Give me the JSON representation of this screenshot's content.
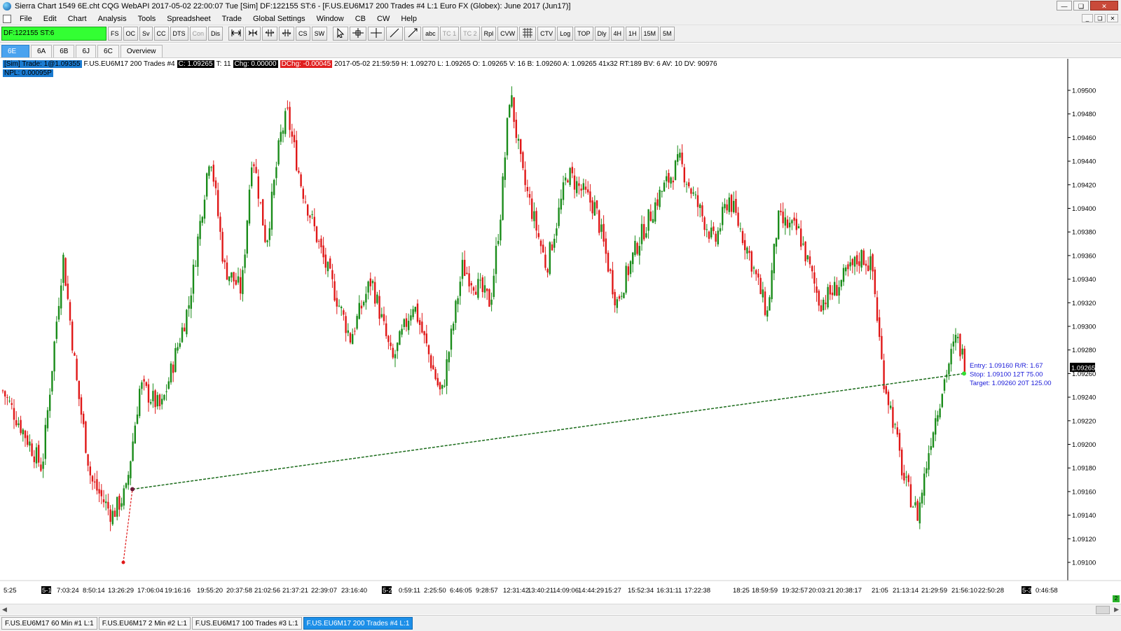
{
  "window": {
    "title": "Sierra Chart 1549 6E.cht  CQG WebAPI 2017-05-02  22:00:07 Tue [Sim]  DF:122155  ST:6 - [F.US.EU6M17  200 Trades  #4  L:1  Euro FX (Globex): June 2017 (Jun17)]"
  },
  "menu": [
    "File",
    "Edit",
    "Chart",
    "Analysis",
    "Tools",
    "Spreadsheet",
    "Trade",
    "Global Settings",
    "Window",
    "CB",
    "CW",
    "Help"
  ],
  "toolbar": {
    "account_label": "DF:122155  ST:6",
    "group1": [
      "FS",
      "OC",
      "Sv",
      "CC",
      "DTS",
      "Con",
      "Dis"
    ],
    "group2_icons": [
      "expand-horizontal-icon",
      "compress-horizontal-icon",
      "scale-in-icon",
      "scale-out-icon"
    ],
    "group2_text": [
      "CS",
      "SW"
    ],
    "group3_icons": [
      "pointer-icon",
      "crosshair-icon",
      "cross-icon",
      "line-icon",
      "ray-icon"
    ],
    "group3_text": [
      "abc",
      "TC 1",
      "TC 2",
      "Rpl",
      "CVW"
    ],
    "group4": [
      "CTV",
      "Log",
      "TOP",
      "Dly",
      "4H",
      "1H",
      "15M",
      "5M"
    ]
  },
  "chart_tabs": [
    "6E",
    "6A",
    "6B",
    "6J",
    "6C",
    "Overview"
  ],
  "info": {
    "sim": "[Sim]  Trade: 1@1.09355",
    "symbol": "F.US.EU6M17  200 Trades  #4",
    "close": "C: 1.09265",
    "ticks": "T: 11",
    "chg": "Chg: 0.00000",
    "dchg": "DChg: -0.00045",
    "rest": "2017-05-02  21:59:59  H: 1.09270  L: 1.09265  O: 1.09265  V: 16  B: 1.09260  A: 1.09265  41x32  RT:189  BV: 6  AV: 10  DV: 90976",
    "npl": "NPL: 0.00095P"
  },
  "order_labels": {
    "entry": "Entry: 1.09160  R/R: 1.67",
    "stop": "Stop: 1.09100  12T  75.00",
    "target": "Target: 1.09260  20T  125.00"
  },
  "last_price": "1.09265",
  "status_corner": "2",
  "bottom_tabs": [
    "F.US.EU6M17  60 Min  #1  L:1",
    "F.US.EU6M17  2 Min  #2  L:1",
    "F.US.EU6M17  100 Trades  #3  L:1",
    "F.US.EU6M17  200 Trades  #4  L:1"
  ],
  "chart_data": {
    "type": "candlestick",
    "ylim": [
      1.0909,
      1.0952
    ],
    "y_ticks": [
      "1.09500",
      "1.09480",
      "1.09460",
      "1.09440",
      "1.09420",
      "1.09400",
      "1.09380",
      "1.09360",
      "1.09340",
      "1.09320",
      "1.09300",
      "1.09280",
      "1.09260",
      "1.09240",
      "1.09220",
      "1.09200",
      "1.09180",
      "1.09160",
      "1.09140",
      "1.09120",
      "1.09100"
    ],
    "x_ticks": [
      "5:25",
      "5-1",
      "7:03:24",
      "8:50:14",
      "13:26:29",
      "17:06:04",
      "19:16:16",
      "19:55:20",
      "20:37:58",
      "21:02:56",
      "21:37:21",
      "22:39:07",
      "23:16:40",
      "5-2",
      "0:59:11",
      "2:25:50",
      "6:46:05",
      "9:28:57",
      "12:31:42",
      "13:40:21",
      "14:09:06",
      "14:44:29",
      "15:27",
      "15:52:34",
      "16:31:11",
      "17:22:38",
      "18:25",
      "18:59:59",
      "19:32:57",
      "20:03:21",
      "20:38:17",
      "21:05",
      "21:13:14",
      "21:29:59",
      "21:56:10",
      "22:50:28",
      "5-3",
      "0:46:58"
    ],
    "close_path": [
      [
        0,
        1.0925
      ],
      [
        60,
        1.0918
      ],
      [
        90,
        1.0936
      ],
      [
        110,
        1.0925
      ],
      [
        130,
        1.0917
      ],
      [
        160,
        1.0914
      ],
      [
        180,
        1.0916
      ],
      [
        200,
        1.0925
      ],
      [
        230,
        1.0923
      ],
      [
        270,
        1.0932
      ],
      [
        300,
        1.0945
      ],
      [
        320,
        1.0935
      ],
      [
        345,
        1.0933
      ],
      [
        360,
        1.0945
      ],
      [
        380,
        1.0937
      ],
      [
        400,
        1.0946
      ],
      [
        410,
        1.0948
      ],
      [
        430,
        1.0942
      ],
      [
        460,
        1.0936
      ],
      [
        500,
        1.0929
      ],
      [
        530,
        1.0934
      ],
      [
        560,
        1.0927
      ],
      [
        590,
        1.0932
      ],
      [
        630,
        1.0924
      ],
      [
        660,
        1.0935
      ],
      [
        700,
        1.0932
      ],
      [
        715,
        1.094
      ],
      [
        728,
        1.095
      ],
      [
        745,
        1.0943
      ],
      [
        780,
        1.0935
      ],
      [
        810,
        1.0943
      ],
      [
        850,
        1.094
      ],
      [
        880,
        1.0932
      ],
      [
        910,
        1.0937
      ],
      [
        940,
        1.0941
      ],
      [
        970,
        1.0944
      ],
      [
        990,
        1.0941
      ],
      [
        1020,
        1.0937
      ],
      [
        1040,
        1.0941
      ],
      [
        1070,
        1.0936
      ],
      [
        1095,
        1.0931
      ],
      [
        1110,
        1.0939
      ],
      [
        1140,
        1.0938
      ],
      [
        1170,
        1.0932
      ],
      [
        1190,
        1.0933
      ],
      [
        1230,
        1.0936
      ],
      [
        1245,
        1.0935
      ],
      [
        1260,
        1.0926
      ],
      [
        1275,
        1.0922
      ],
      [
        1290,
        1.0917
      ],
      [
        1310,
        1.0914
      ],
      [
        1330,
        1.0921
      ],
      [
        1350,
        1.0926
      ],
      [
        1365,
        1.0929
      ],
      [
        1380,
        1.09265
      ]
    ],
    "position_line": {
      "from": [
        189,
        1.09162
      ],
      "to": [
        1376,
        1.0926
      ]
    },
    "entry_marker": [
      189,
      1.09162
    ],
    "low_marker": [
      176,
      1.091
    ]
  }
}
